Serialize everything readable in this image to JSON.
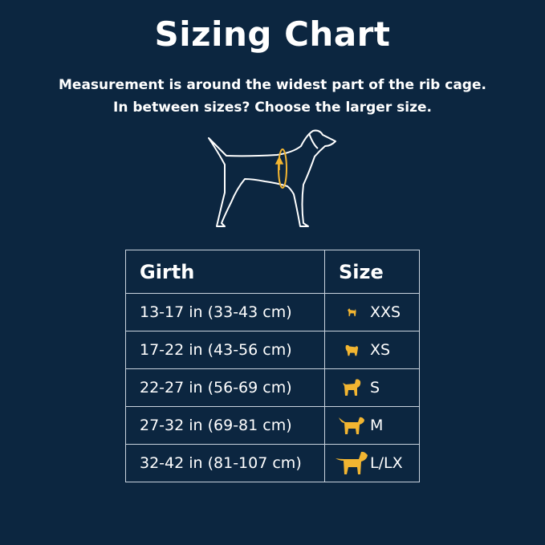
{
  "title": "Sizing Chart",
  "subtitle_lines": [
    "Measurement is around the widest part of the rib cage.",
    "In between sizes? Choose the larger size."
  ],
  "colors": {
    "background": "#0c2640",
    "accent": "#f2b531",
    "text": "#ffffff"
  },
  "table": {
    "headers": {
      "girth": "Girth",
      "size": "Size"
    },
    "rows": [
      {
        "girth": "13-17 in (33-43 cm)",
        "size": "XXS",
        "icon": "tiny-dog-icon"
      },
      {
        "girth": "17-22 in (43-56 cm)",
        "size": "XS",
        "icon": "small-fluffy-dog-icon"
      },
      {
        "girth": "22-27 in (56-69 cm)",
        "size": "S",
        "icon": "small-dog-icon"
      },
      {
        "girth": "27-32 in (69-81 cm)",
        "size": "M",
        "icon": "medium-dog-icon"
      },
      {
        "girth": "32-42 in (81-107 cm)",
        "size": "L/LX",
        "icon": "large-dog-icon"
      }
    ]
  }
}
